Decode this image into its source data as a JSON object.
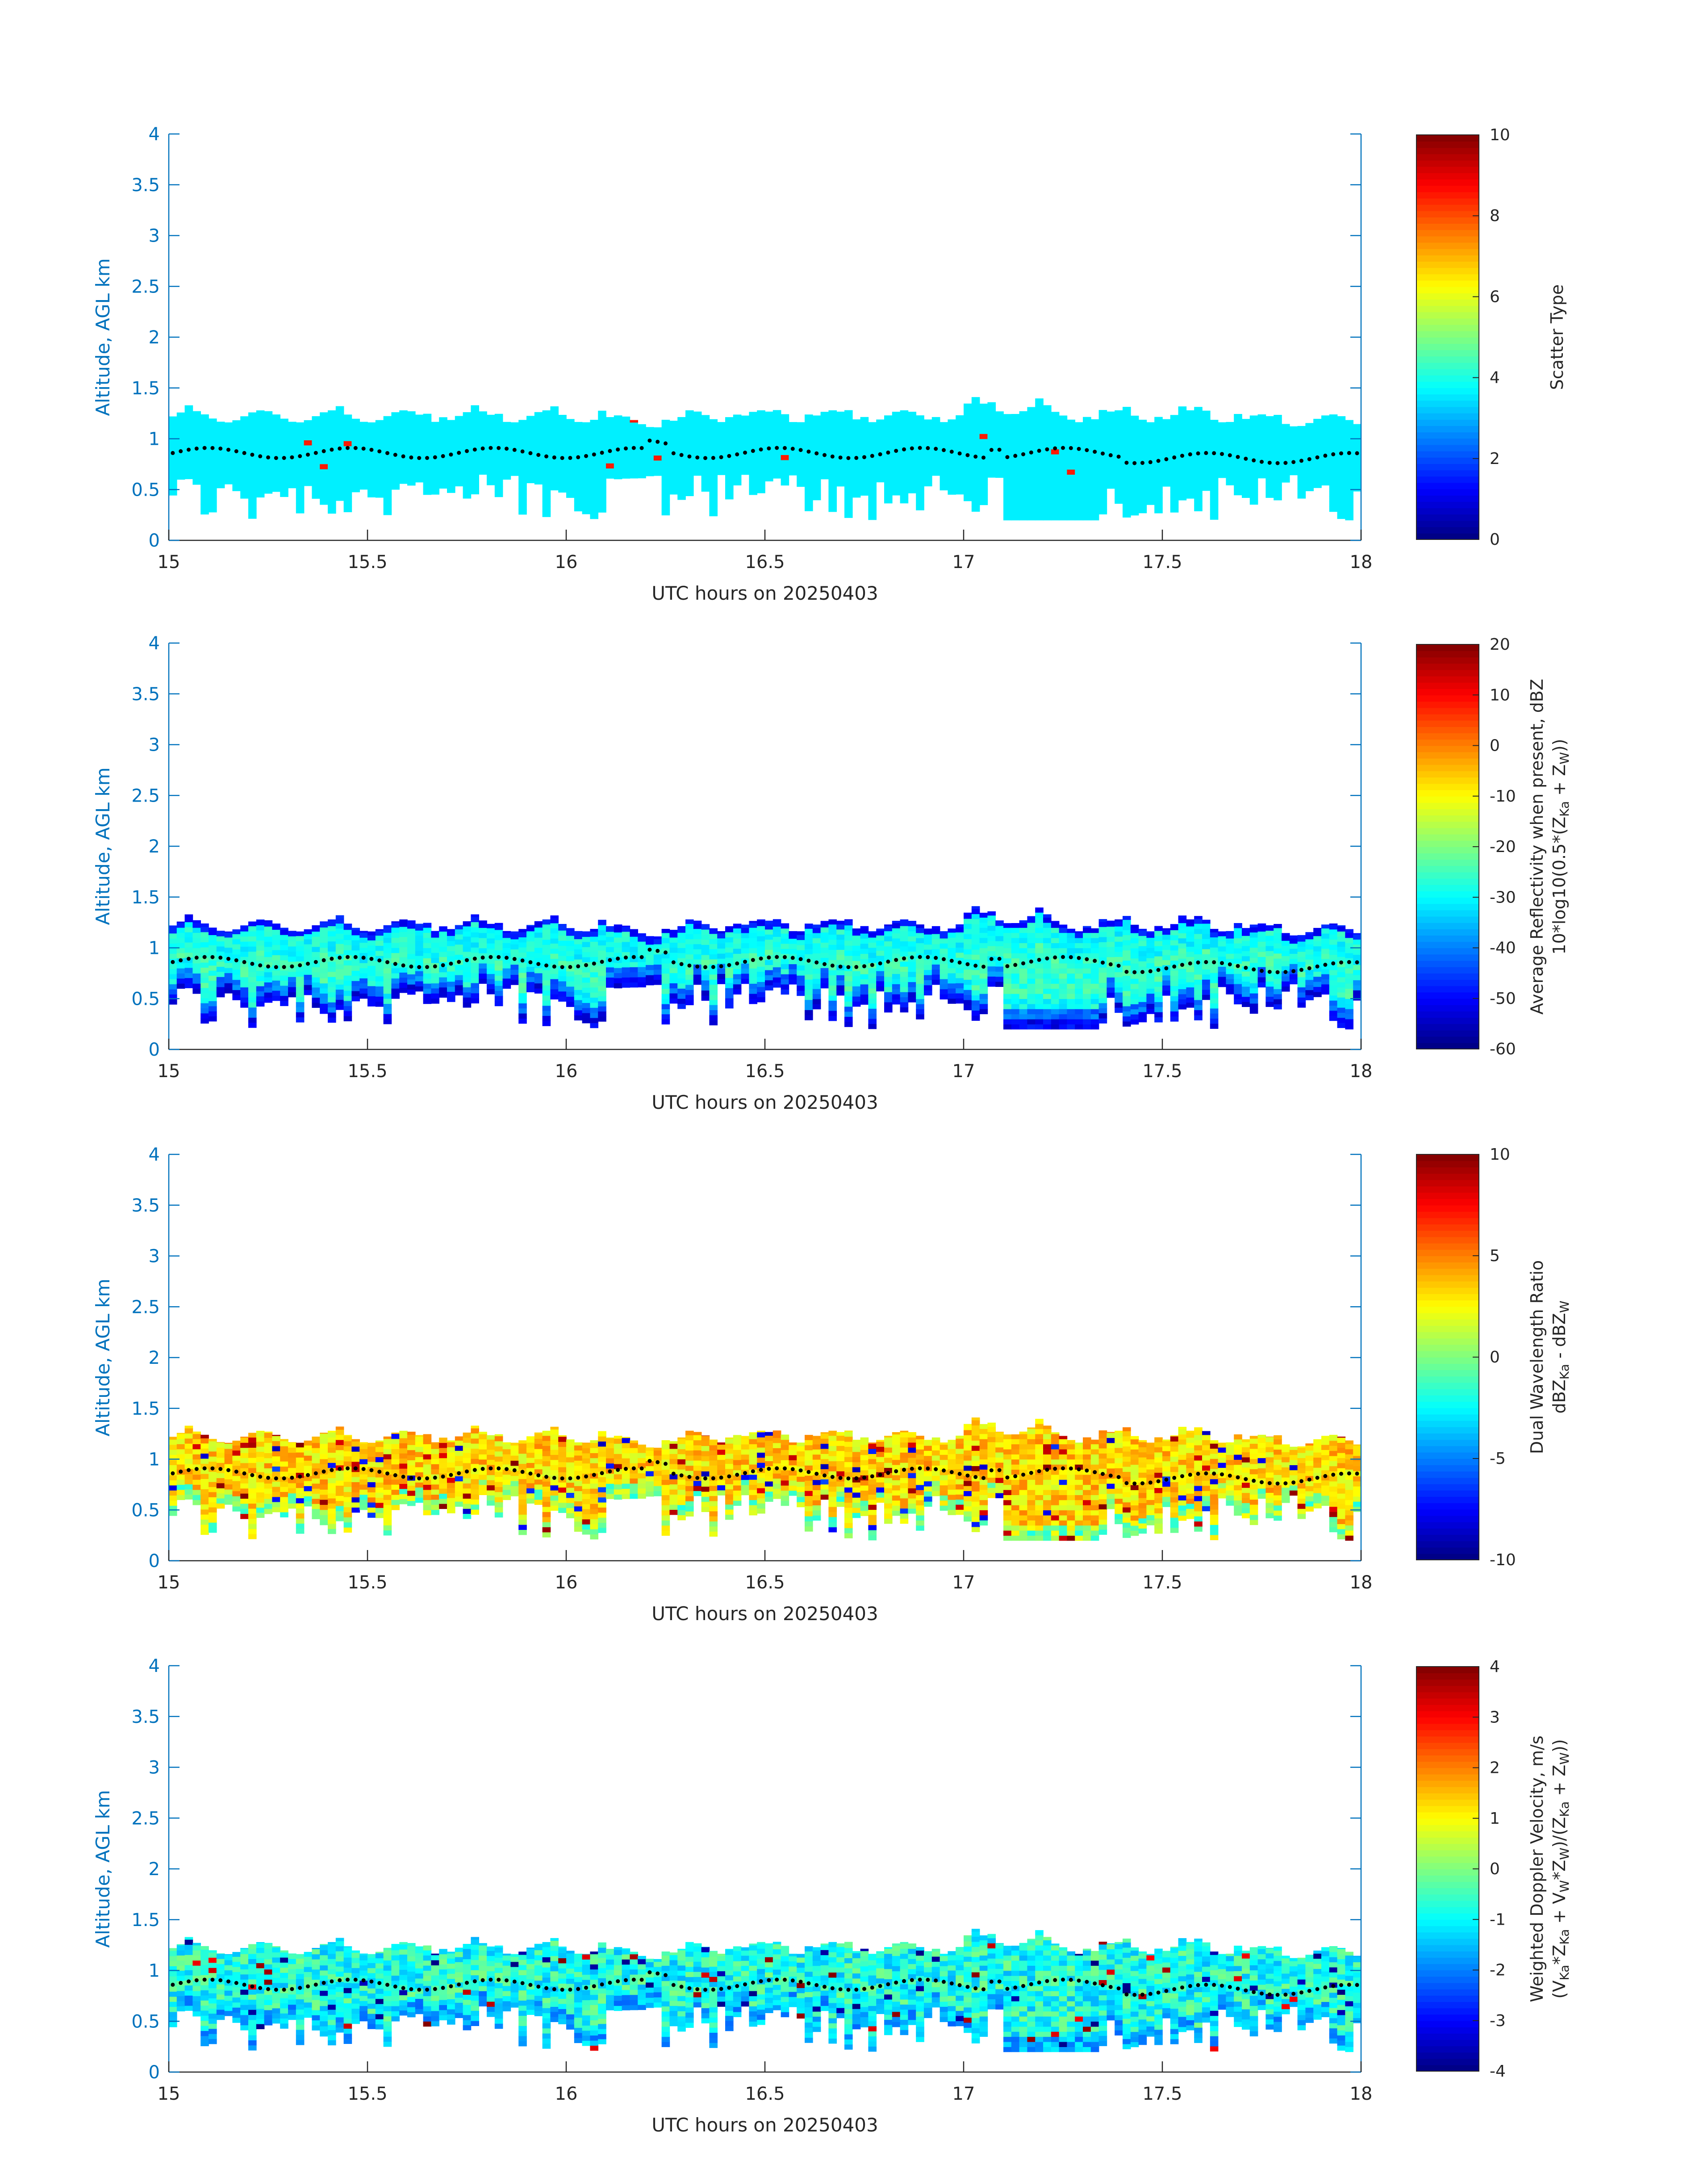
{
  "figure": {
    "x_label": "UTC hours on 20250403",
    "y_label": "Altitude, AGL km"
  },
  "chart_data": [
    {
      "type": "heatmap",
      "x_label": "UTC hours on 20250403",
      "y_label": "Altitude, AGL km",
      "xlim": [
        15,
        18
      ],
      "ylim": [
        0,
        4
      ],
      "x_ticks": [
        "15",
        "15.5",
        "16",
        "16.5",
        "17",
        "17.5",
        "18"
      ],
      "y_ticks": [
        "0",
        "0.5",
        "1",
        "1.5",
        "2",
        "2.5",
        "3",
        "3.5",
        "4"
      ],
      "colorbar": {
        "label_lines": [
          "Scatter Type"
        ],
        "range": [
          0,
          10
        ],
        "ticks": [
          "0",
          "2",
          "4",
          "6",
          "8",
          "10"
        ]
      },
      "field": "scatter",
      "cloud_layer": {
        "base_km": [
          0.2,
          0.6
        ],
        "top_km": [
          1.15,
          1.35
        ],
        "dominant_value": 3.6,
        "sparse_values": [
          8.5
        ]
      },
      "overlay": "black dotted line near 0.8-0.95 km"
    },
    {
      "type": "heatmap",
      "x_label": "UTC hours on 20250403",
      "y_label": "Altitude, AGL km",
      "xlim": [
        15,
        18
      ],
      "ylim": [
        0,
        4
      ],
      "x_ticks": [
        "15",
        "15.5",
        "16",
        "16.5",
        "17",
        "17.5",
        "18"
      ],
      "y_ticks": [
        "0",
        "0.5",
        "1",
        "1.5",
        "2",
        "2.5",
        "3",
        "3.5",
        "4"
      ],
      "colorbar": {
        "label_lines": [
          "Average Reflectivity when present, dBZ",
          "10*log10(0.5*(Z",
          "Ka",
          " + Z",
          "W",
          "))"
        ],
        "range": [
          -60,
          20
        ],
        "ticks": [
          "-60",
          "-50",
          "-40",
          "-30",
          "-20",
          "-10",
          "0",
          "10",
          "20"
        ]
      },
      "field": "reflectivity",
      "cloud_layer": {
        "core_value_range": [
          -38,
          -25
        ],
        "edge_value": -55
      },
      "overlay": "black dotted line near 0.8-0.95 km"
    },
    {
      "type": "heatmap",
      "x_label": "UTC hours on 20250403",
      "y_label": "Altitude, AGL km",
      "xlim": [
        15,
        18
      ],
      "ylim": [
        0,
        4
      ],
      "x_ticks": [
        "15",
        "15.5",
        "16",
        "16.5",
        "17",
        "17.5",
        "18"
      ],
      "y_ticks": [
        "0",
        "0.5",
        "1",
        "1.5",
        "2",
        "2.5",
        "3",
        "3.5",
        "4"
      ],
      "colorbar": {
        "label_lines": [
          "Dual Wavelength Ratio",
          "dBZ",
          "Ka",
          " - dBZ",
          "W"
        ],
        "range": [
          -10,
          10
        ],
        "ticks": [
          "-10",
          "-5",
          "0",
          "5",
          "10"
        ]
      },
      "field": "dwr",
      "cloud_layer": {
        "value_range": [
          -4,
          6
        ],
        "typical": 3
      },
      "overlay": "black dotted line near 0.8-0.95 km"
    },
    {
      "type": "heatmap",
      "x_label": "UTC hours on 20250403",
      "y_label": "Altitude, AGL km",
      "xlim": [
        15,
        18
      ],
      "ylim": [
        0,
        4
      ],
      "x_ticks": [
        "15",
        "15.5",
        "16",
        "16.5",
        "17",
        "17.5",
        "18"
      ],
      "y_ticks": [
        "0",
        "0.5",
        "1",
        "1.5",
        "2",
        "2.5",
        "3",
        "3.5",
        "4"
      ],
      "colorbar": {
        "label_lines": [
          "Weighted Doppler Velocity, m/s",
          "(V",
          "Ka",
          "*Z",
          "Ka",
          " + V",
          "W",
          "*Z",
          "W",
          ")/(Z",
          "Ka",
          " + Z",
          "W",
          "))"
        ],
        "range": [
          -4,
          4
        ],
        "ticks": [
          "-4",
          "-3",
          "-2",
          "-1",
          "0",
          "1",
          "2",
          "3",
          "4"
        ]
      },
      "field": "velocity",
      "cloud_layer": {
        "value_range": [
          -3,
          3
        ],
        "typical": -1.2
      },
      "overlay": "black dotted line near 0.8-0.95 km"
    }
  ]
}
